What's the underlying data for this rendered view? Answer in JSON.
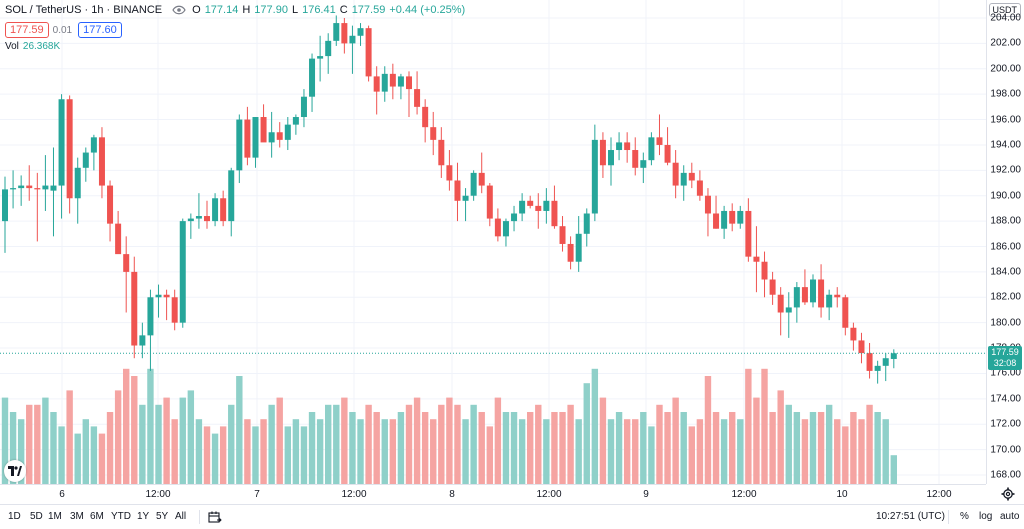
{
  "header": {
    "symbol": "SOL / TetherUS · 1h · BINANCE",
    "ohlc": {
      "o_label": "O",
      "o": "177.14",
      "h_label": "H",
      "h": "177.90",
      "l_label": "L",
      "l": "176.41",
      "c_label": "C",
      "c": "177.59",
      "change": "+0.44 (+0.25%)"
    },
    "sell_price": "177.59",
    "spread": "0.01",
    "buy_price": "177.60",
    "volume_label": "Vol",
    "volume_value": "26.368K"
  },
  "price_scale": {
    "currency": "USDT",
    "labels": [
      "204.00",
      "202.00",
      "200.00",
      "198.00",
      "196.00",
      "194.00",
      "192.00",
      "190.00",
      "188.00",
      "186.00",
      "184.00",
      "182.00",
      "180.00",
      "178.00",
      "176.00",
      "174.00",
      "172.00",
      "170.00",
      "168.00"
    ],
    "current_price": "177.59",
    "countdown": "32:08"
  },
  "time_axis": {
    "labels": [
      "6",
      "12:00",
      "7",
      "12:00",
      "8",
      "12:00",
      "9",
      "12:00",
      "10",
      "12:00"
    ]
  },
  "bottom_bar": {
    "ranges": [
      "1D",
      "5D",
      "1M",
      "3M",
      "6M",
      "YTD",
      "1Y",
      "5Y",
      "All"
    ],
    "clock": "10:27:51 (UTC)",
    "percent": "%",
    "log": "log",
    "auto": "auto"
  },
  "colors": {
    "up": "#26a69a",
    "down": "#ef5350",
    "up_volume": "#8fd0c9",
    "down_volume": "#f5a4a2",
    "grid": "#f0f3fa"
  },
  "chart_data": {
    "type": "candlestick",
    "symbol": "SOL / TetherUS",
    "interval": "1h",
    "ylim": [
      167.5,
      204.5
    ],
    "candles": [
      {
        "o": 188.0,
        "h": 191.5,
        "l": 185.5,
        "c": 190.5,
        "v": 12
      },
      {
        "o": 190.5,
        "h": 192.0,
        "l": 189.0,
        "c": 190.6,
        "v": 10
      },
      {
        "o": 190.6,
        "h": 191.6,
        "l": 189.2,
        "c": 190.8,
        "v": 9
      },
      {
        "o": 190.8,
        "h": 192.4,
        "l": 189.6,
        "c": 190.6,
        "v": 11
      },
      {
        "o": 190.6,
        "h": 191.8,
        "l": 186.4,
        "c": 190.5,
        "v": 11
      },
      {
        "o": 190.5,
        "h": 193.2,
        "l": 188.8,
        "c": 190.8,
        "v": 12
      },
      {
        "o": 190.4,
        "h": 193.8,
        "l": 186.8,
        "c": 190.8,
        "v": 10
      },
      {
        "o": 190.8,
        "h": 198.0,
        "l": 188.2,
        "c": 197.6,
        "v": 8
      },
      {
        "o": 197.6,
        "h": 197.9,
        "l": 188.6,
        "c": 189.8,
        "v": 13
      },
      {
        "o": 189.8,
        "h": 193.0,
        "l": 187.8,
        "c": 192.2,
        "v": 7
      },
      {
        "o": 192.2,
        "h": 193.8,
        "l": 191.1,
        "c": 193.4,
        "v": 9
      },
      {
        "o": 193.4,
        "h": 194.8,
        "l": 192.0,
        "c": 194.6,
        "v": 8
      },
      {
        "o": 194.6,
        "h": 195.4,
        "l": 189.8,
        "c": 190.8,
        "v": 7
      },
      {
        "o": 190.8,
        "h": 191.2,
        "l": 186.4,
        "c": 187.8,
        "v": 10
      },
      {
        "o": 187.8,
        "h": 188.8,
        "l": 185.6,
        "c": 185.4,
        "v": 13
      },
      {
        "o": 185.4,
        "h": 186.8,
        "l": 180.8,
        "c": 184.0,
        "v": 16
      },
      {
        "o": 184.0,
        "h": 185.2,
        "l": 177.2,
        "c": 178.2,
        "v": 15
      },
      {
        "o": 178.2,
        "h": 180.0,
        "l": 177.2,
        "c": 179.0,
        "v": 11
      },
      {
        "o": 179.0,
        "h": 182.6,
        "l": 176.2,
        "c": 182.0,
        "v": 16
      },
      {
        "o": 182.0,
        "h": 183.0,
        "l": 180.4,
        "c": 182.2,
        "v": 11
      },
      {
        "o": 182.2,
        "h": 182.6,
        "l": 180.2,
        "c": 182.0,
        "v": 12
      },
      {
        "o": 182.0,
        "h": 182.6,
        "l": 179.4,
        "c": 180.0,
        "v": 9
      },
      {
        "o": 180.0,
        "h": 188.2,
        "l": 179.6,
        "c": 188.0,
        "v": 12
      },
      {
        "o": 188.0,
        "h": 188.6,
        "l": 186.6,
        "c": 188.2,
        "v": 13
      },
      {
        "o": 188.2,
        "h": 190.2,
        "l": 187.4,
        "c": 188.4,
        "v": 9
      },
      {
        "o": 188.4,
        "h": 189.6,
        "l": 187.4,
        "c": 188.0,
        "v": 8
      },
      {
        "o": 188.0,
        "h": 190.2,
        "l": 187.6,
        "c": 189.8,
        "v": 7
      },
      {
        "o": 189.8,
        "h": 190.4,
        "l": 187.6,
        "c": 188.0,
        "v": 8
      },
      {
        "o": 188.0,
        "h": 192.2,
        "l": 186.8,
        "c": 192.0,
        "v": 11
      },
      {
        "o": 192.0,
        "h": 196.4,
        "l": 191.0,
        "c": 196.0,
        "v": 15
      },
      {
        "o": 196.0,
        "h": 197.0,
        "l": 192.4,
        "c": 193.0,
        "v": 9
      },
      {
        "o": 193.0,
        "h": 196.2,
        "l": 192.2,
        "c": 196.2,
        "v": 8
      },
      {
        "o": 196.2,
        "h": 197.2,
        "l": 194.4,
        "c": 194.2,
        "v": 9
      },
      {
        "o": 194.2,
        "h": 196.6,
        "l": 193.0,
        "c": 195.0,
        "v": 11
      },
      {
        "o": 195.0,
        "h": 195.8,
        "l": 193.8,
        "c": 194.4,
        "v": 12
      },
      {
        "o": 194.4,
        "h": 196.2,
        "l": 193.6,
        "c": 195.6,
        "v": 8
      },
      {
        "o": 195.6,
        "h": 196.4,
        "l": 194.8,
        "c": 196.2,
        "v": 9
      },
      {
        "o": 196.2,
        "h": 198.4,
        "l": 195.4,
        "c": 197.8,
        "v": 8
      },
      {
        "o": 197.8,
        "h": 201.2,
        "l": 196.6,
        "c": 200.8,
        "v": 10
      },
      {
        "o": 200.8,
        "h": 202.6,
        "l": 199.0,
        "c": 201.0,
        "v": 9
      },
      {
        "o": 201.0,
        "h": 202.8,
        "l": 199.6,
        "c": 202.2,
        "v": 11
      },
      {
        "o": 202.2,
        "h": 204.2,
        "l": 201.8,
        "c": 203.6,
        "v": 11
      },
      {
        "o": 203.6,
        "h": 204.0,
        "l": 201.2,
        "c": 202.0,
        "v": 12
      },
      {
        "o": 202.0,
        "h": 203.4,
        "l": 199.6,
        "c": 202.6,
        "v": 10
      },
      {
        "o": 202.6,
        "h": 203.6,
        "l": 201.8,
        "c": 203.2,
        "v": 9
      },
      {
        "o": 203.2,
        "h": 203.4,
        "l": 199.0,
        "c": 199.4,
        "v": 11
      },
      {
        "o": 199.4,
        "h": 200.2,
        "l": 196.4,
        "c": 198.2,
        "v": 10
      },
      {
        "o": 198.2,
        "h": 200.2,
        "l": 197.4,
        "c": 199.6,
        "v": 9
      },
      {
        "o": 199.6,
        "h": 200.4,
        "l": 197.6,
        "c": 198.6,
        "v": 9
      },
      {
        "o": 198.6,
        "h": 199.6,
        "l": 197.6,
        "c": 199.4,
        "v": 10
      },
      {
        "o": 199.4,
        "h": 199.8,
        "l": 196.2,
        "c": 198.4,
        "v": 11
      },
      {
        "o": 198.4,
        "h": 199.8,
        "l": 196.4,
        "c": 197.0,
        "v": 12
      },
      {
        "o": 197.0,
        "h": 197.6,
        "l": 194.2,
        "c": 195.4,
        "v": 10
      },
      {
        "o": 195.4,
        "h": 196.6,
        "l": 193.2,
        "c": 194.4,
        "v": 9
      },
      {
        "o": 194.4,
        "h": 195.4,
        "l": 191.4,
        "c": 192.4,
        "v": 11
      },
      {
        "o": 192.4,
        "h": 193.6,
        "l": 190.4,
        "c": 191.2,
        "v": 12
      },
      {
        "o": 191.2,
        "h": 192.6,
        "l": 188.0,
        "c": 189.6,
        "v": 11
      },
      {
        "o": 189.6,
        "h": 190.6,
        "l": 188.0,
        "c": 190.0,
        "v": 9
      },
      {
        "o": 190.0,
        "h": 192.0,
        "l": 189.6,
        "c": 191.8,
        "v": 11
      },
      {
        "o": 191.8,
        "h": 193.4,
        "l": 190.2,
        "c": 190.8,
        "v": 10
      },
      {
        "o": 190.8,
        "h": 191.0,
        "l": 187.6,
        "c": 188.2,
        "v": 8
      },
      {
        "o": 188.2,
        "h": 189.0,
        "l": 186.4,
        "c": 186.8,
        "v": 12
      },
      {
        "o": 186.8,
        "h": 188.2,
        "l": 186.0,
        "c": 188.0,
        "v": 10
      },
      {
        "o": 188.0,
        "h": 189.2,
        "l": 187.2,
        "c": 188.6,
        "v": 10
      },
      {
        "o": 188.6,
        "h": 190.2,
        "l": 188.0,
        "c": 189.6,
        "v": 9
      },
      {
        "o": 189.6,
        "h": 190.0,
        "l": 189.0,
        "c": 189.2,
        "v": 10
      },
      {
        "o": 189.2,
        "h": 190.2,
        "l": 187.4,
        "c": 188.8,
        "v": 11
      },
      {
        "o": 188.8,
        "h": 190.6,
        "l": 187.8,
        "c": 189.6,
        "v": 9
      },
      {
        "o": 189.6,
        "h": 190.8,
        "l": 187.4,
        "c": 187.6,
        "v": 10
      },
      {
        "o": 187.6,
        "h": 188.4,
        "l": 185.6,
        "c": 186.2,
        "v": 10
      },
      {
        "o": 186.2,
        "h": 186.8,
        "l": 184.2,
        "c": 184.8,
        "v": 11
      },
      {
        "o": 184.8,
        "h": 188.4,
        "l": 184.0,
        "c": 187.0,
        "v": 9
      },
      {
        "o": 187.0,
        "h": 189.0,
        "l": 186.0,
        "c": 188.6,
        "v": 14
      },
      {
        "o": 188.6,
        "h": 195.6,
        "l": 188.0,
        "c": 194.4,
        "v": 16
      },
      {
        "o": 194.4,
        "h": 195.0,
        "l": 191.4,
        "c": 192.4,
        "v": 12
      },
      {
        "o": 192.4,
        "h": 194.6,
        "l": 190.8,
        "c": 193.6,
        "v": 9
      },
      {
        "o": 193.6,
        "h": 195.0,
        "l": 192.8,
        "c": 194.2,
        "v": 10
      },
      {
        "o": 194.2,
        "h": 195.0,
        "l": 192.6,
        "c": 193.6,
        "v": 9
      },
      {
        "o": 193.6,
        "h": 194.6,
        "l": 191.6,
        "c": 192.2,
        "v": 9
      },
      {
        "o": 192.2,
        "h": 193.4,
        "l": 191.0,
        "c": 192.8,
        "v": 10
      },
      {
        "o": 192.8,
        "h": 195.0,
        "l": 192.4,
        "c": 194.6,
        "v": 8
      },
      {
        "o": 194.6,
        "h": 196.4,
        "l": 193.2,
        "c": 194.0,
        "v": 11
      },
      {
        "o": 194.0,
        "h": 195.4,
        "l": 192.4,
        "c": 192.6,
        "v": 10
      },
      {
        "o": 192.6,
        "h": 193.6,
        "l": 189.8,
        "c": 190.8,
        "v": 12
      },
      {
        "o": 190.8,
        "h": 192.4,
        "l": 189.6,
        "c": 191.8,
        "v": 10
      },
      {
        "o": 191.8,
        "h": 192.6,
        "l": 190.6,
        "c": 191.2,
        "v": 8
      },
      {
        "o": 191.2,
        "h": 192.0,
        "l": 189.6,
        "c": 190.0,
        "v": 9
      },
      {
        "o": 190.0,
        "h": 190.6,
        "l": 186.8,
        "c": 188.6,
        "v": 15
      },
      {
        "o": 188.6,
        "h": 190.0,
        "l": 187.4,
        "c": 187.4,
        "v": 10
      },
      {
        "o": 187.4,
        "h": 189.2,
        "l": 186.6,
        "c": 188.8,
        "v": 9
      },
      {
        "o": 188.8,
        "h": 189.4,
        "l": 187.2,
        "c": 187.8,
        "v": 10
      },
      {
        "o": 187.8,
        "h": 189.2,
        "l": 187.4,
        "c": 188.8,
        "v": 9
      },
      {
        "o": 188.8,
        "h": 189.8,
        "l": 184.8,
        "c": 185.2,
        "v": 16
      },
      {
        "o": 185.2,
        "h": 187.6,
        "l": 182.4,
        "c": 184.8,
        "v": 12
      },
      {
        "o": 184.8,
        "h": 185.6,
        "l": 182.0,
        "c": 183.4,
        "v": 16
      },
      {
        "o": 183.4,
        "h": 184.0,
        "l": 181.4,
        "c": 182.2,
        "v": 10
      },
      {
        "o": 182.2,
        "h": 182.8,
        "l": 179.0,
        "c": 180.8,
        "v": 13
      },
      {
        "o": 180.8,
        "h": 182.4,
        "l": 178.8,
        "c": 181.2,
        "v": 11
      },
      {
        "o": 181.2,
        "h": 183.2,
        "l": 180.0,
        "c": 182.8,
        "v": 10
      },
      {
        "o": 182.8,
        "h": 184.2,
        "l": 181.4,
        "c": 181.6,
        "v": 9
      },
      {
        "o": 181.6,
        "h": 183.8,
        "l": 181.2,
        "c": 183.4,
        "v": 10
      },
      {
        "o": 183.4,
        "h": 184.6,
        "l": 180.4,
        "c": 181.2,
        "v": 10
      },
      {
        "o": 181.2,
        "h": 182.6,
        "l": 180.2,
        "c": 182.2,
        "v": 11
      },
      {
        "o": 182.2,
        "h": 182.8,
        "l": 181.2,
        "c": 182.0,
        "v": 9
      },
      {
        "o": 182.0,
        "h": 182.2,
        "l": 179.0,
        "c": 179.6,
        "v": 8
      },
      {
        "o": 179.6,
        "h": 180.0,
        "l": 177.8,
        "c": 178.6,
        "v": 10
      },
      {
        "o": 178.6,
        "h": 179.2,
        "l": 176.8,
        "c": 177.6,
        "v": 9
      },
      {
        "o": 177.6,
        "h": 178.4,
        "l": 175.6,
        "c": 176.2,
        "v": 11
      },
      {
        "o": 176.2,
        "h": 177.0,
        "l": 175.2,
        "c": 176.6,
        "v": 10
      },
      {
        "o": 176.6,
        "h": 177.6,
        "l": 175.4,
        "c": 177.2,
        "v": 9
      },
      {
        "o": 177.14,
        "h": 177.9,
        "l": 176.41,
        "c": 177.59,
        "v": 4
      }
    ]
  }
}
